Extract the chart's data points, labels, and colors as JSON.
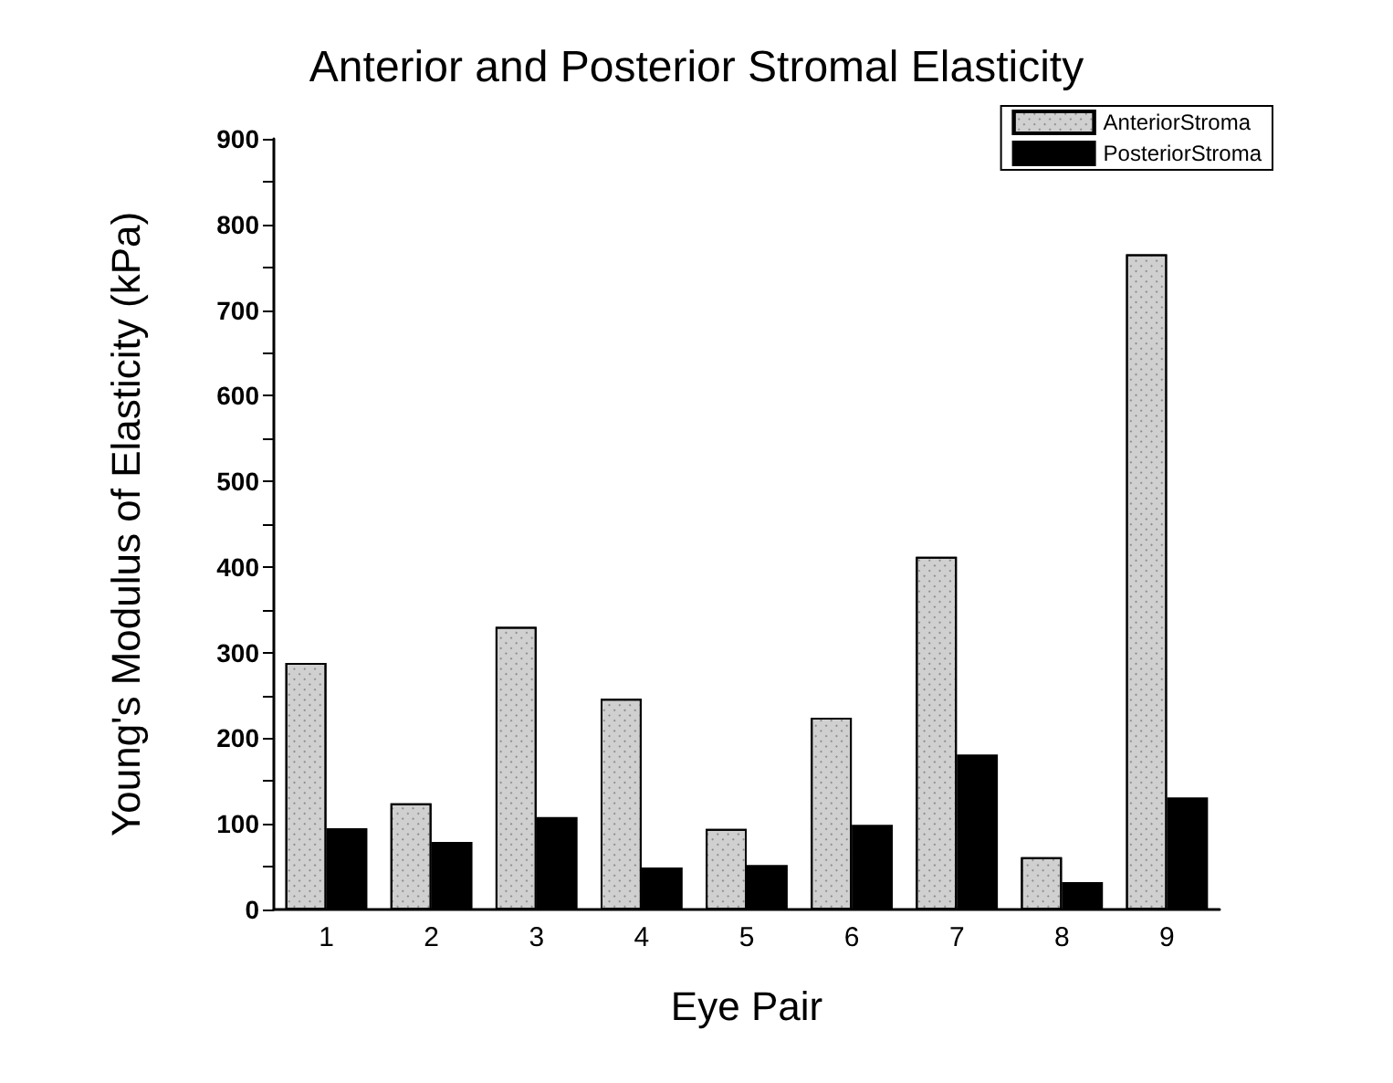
{
  "chart_data": {
    "type": "bar",
    "title": "Anterior and Posterior Stromal Elasticity",
    "xlabel": "Eye Pair",
    "ylabel": "Young's Modulus of Elasticity (kPa)",
    "categories": [
      "1",
      "2",
      "3",
      "4",
      "5",
      "6",
      "7",
      "8",
      "9"
    ],
    "series": [
      {
        "name": "AnteriorStroma",
        "color": "#d0d0d0",
        "values": [
          288,
          124,
          330,
          246,
          94,
          224,
          412,
          61,
          765
        ]
      },
      {
        "name": "PosteriorStroma",
        "color": "#000000",
        "values": [
          95,
          79,
          108,
          49,
          52,
          99,
          181,
          32,
          131
        ]
      }
    ],
    "ylim": [
      0,
      900
    ],
    "yticks": [
      0,
      {
        "value": 50,
        "label": null
      },
      100,
      {
        "value": 150,
        "label": null
      },
      200,
      {
        "value": 250,
        "label": null
      },
      300,
      {
        "value": 350,
        "label": null
      },
      400,
      {
        "value": 450,
        "label": null
      },
      500,
      {
        "value": 550,
        "label": null
      },
      600,
      {
        "value": 650,
        "label": null
      },
      700,
      {
        "value": 750,
        "label": null
      },
      800,
      {
        "value": 850,
        "label": null
      },
      900
    ],
    "grid": false,
    "legend": "top right"
  }
}
